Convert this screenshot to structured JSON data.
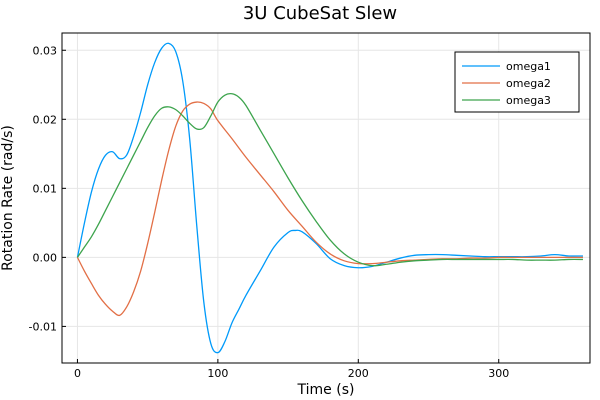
{
  "chart_data": {
    "type": "line",
    "title": "3U CubeSat Slew",
    "xlabel": "Time (s)",
    "ylabel": "Rotation Rate (rad/s)",
    "xlim": [
      -11,
      365
    ],
    "ylim": [
      -0.0153,
      0.0325
    ],
    "xticks": [
      0,
      100,
      200,
      300
    ],
    "xtick_labels": [
      "0",
      "100",
      "200",
      "300"
    ],
    "yticks": [
      -0.01,
      0.0,
      0.01,
      0.02,
      0.03
    ],
    "ytick_labels": [
      "-0.01",
      "0.00",
      "0.01",
      "0.02",
      "0.03"
    ],
    "grid": true,
    "legend_position": "top-right",
    "series": [
      {
        "name": "omega1",
        "color": "#009AFA",
        "x": [
          0,
          5,
          10,
          15,
          20,
          25,
          30,
          35,
          40,
          45,
          50,
          55,
          60,
          65,
          70,
          75,
          80,
          85,
          90,
          95,
          100,
          105,
          110,
          115,
          120,
          130,
          140,
          150,
          155,
          160,
          170,
          180,
          190,
          200,
          210,
          220,
          230,
          240,
          250,
          260,
          270,
          280,
          290,
          300,
          310,
          320,
          330,
          340,
          350,
          360
        ],
        "y": [
          0.0,
          0.005,
          0.0095,
          0.0128,
          0.0148,
          0.0153,
          0.0143,
          0.0148,
          0.0175,
          0.021,
          0.025,
          0.0282,
          0.0303,
          0.031,
          0.0298,
          0.0255,
          0.017,
          0.0045,
          -0.0065,
          -0.0125,
          -0.0138,
          -0.0122,
          -0.0095,
          -0.0075,
          -0.0055,
          -0.002,
          0.0015,
          0.0036,
          0.0039,
          0.0037,
          0.002,
          -0.0002,
          -0.0012,
          -0.0015,
          -0.0013,
          -0.0007,
          -0.0001,
          0.0003,
          0.0004,
          0.0004,
          0.0003,
          0.0002,
          0.0001,
          0.0001,
          0.0001,
          0.0001,
          0.0002,
          0.0004,
          0.0002,
          0.0002
        ]
      },
      {
        "name": "omega2",
        "color": "#E26F46",
        "x": [
          0,
          5,
          10,
          15,
          20,
          25,
          30,
          35,
          40,
          45,
          50,
          55,
          60,
          65,
          70,
          75,
          80,
          85,
          90,
          95,
          100,
          110,
          120,
          130,
          140,
          150,
          160,
          170,
          180,
          190,
          200,
          210,
          220,
          230,
          240,
          250,
          260,
          270,
          280,
          290,
          300,
          310,
          320,
          330,
          340,
          350,
          360
        ],
        "y": [
          0.0,
          -0.002,
          -0.0038,
          -0.0055,
          -0.0068,
          -0.0078,
          -0.0084,
          -0.0072,
          -0.005,
          -0.002,
          0.002,
          0.0065,
          0.0112,
          0.0155,
          0.019,
          0.0212,
          0.0222,
          0.0225,
          0.0223,
          0.0215,
          0.0198,
          0.0172,
          0.0145,
          0.012,
          0.0095,
          0.0068,
          0.0045,
          0.0022,
          0.0005,
          -0.0005,
          -0.0009,
          -0.0009,
          -0.0007,
          -0.0005,
          -0.0004,
          -0.0003,
          -0.0002,
          -0.0002,
          -0.0001,
          -0.0001,
          0.0,
          0.0,
          0.0,
          0.0,
          0.0,
          0.0,
          0.0
        ]
      },
      {
        "name": "omega3",
        "color": "#3DA44D",
        "x": [
          0,
          5,
          10,
          15,
          20,
          25,
          30,
          35,
          40,
          45,
          50,
          55,
          60,
          65,
          70,
          75,
          80,
          85,
          90,
          95,
          100,
          105,
          110,
          115,
          120,
          130,
          140,
          150,
          160,
          170,
          180,
          190,
          200,
          210,
          220,
          230,
          240,
          250,
          260,
          270,
          280,
          290,
          300,
          310,
          320,
          330,
          340,
          350,
          360
        ],
        "y": [
          0.0,
          0.0015,
          0.003,
          0.0048,
          0.0068,
          0.0088,
          0.0108,
          0.0128,
          0.0148,
          0.0168,
          0.0188,
          0.0205,
          0.0216,
          0.0218,
          0.0214,
          0.0205,
          0.0194,
          0.0186,
          0.0188,
          0.0205,
          0.0225,
          0.0235,
          0.0237,
          0.0232,
          0.022,
          0.0185,
          0.015,
          0.0115,
          0.0082,
          0.0052,
          0.0025,
          0.0005,
          -0.0007,
          -0.0012,
          -0.001,
          -0.0007,
          -0.0005,
          -0.0004,
          -0.0003,
          -0.0003,
          -0.0003,
          -0.0003,
          -0.0003,
          -0.0003,
          -0.0004,
          -0.0004,
          -0.0004,
          -0.0003,
          -0.0003
        ]
      }
    ]
  }
}
